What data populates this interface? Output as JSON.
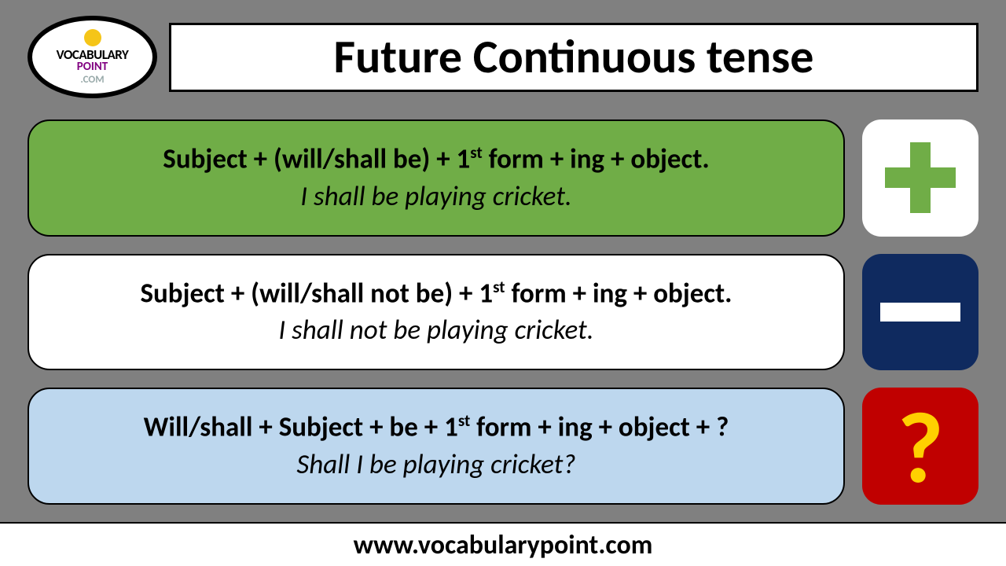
{
  "title": "Future Continuous tense",
  "logo": {
    "line1": "VOCABULARY",
    "line2": "POINT",
    "line3": ".COM"
  },
  "rules": [
    {
      "formula_pre": "Subject + (will/shall be) + 1",
      "formula_post": " form + ing + object.",
      "example": "I shall be playing cricket.",
      "box_color": "#70ad47",
      "icon_bg": "#ffffff"
    },
    {
      "formula_pre": "Subject + (will/shall not be) + 1",
      "formula_post": " form + ing + object.",
      "example": "I shall not be playing cricket.",
      "box_color": "#ffffff",
      "icon_bg": "#0f2a5f"
    },
    {
      "formula_pre": "Will/shall + Subject + be + 1",
      "formula_post": " form + ing + object + ?",
      "example": "Shall I be playing cricket?",
      "box_color": "#bdd7ee",
      "icon_bg": "#c00000"
    }
  ],
  "footer": "www.vocabularypoint.com",
  "background_color": "#808080",
  "text_color": "#000000"
}
